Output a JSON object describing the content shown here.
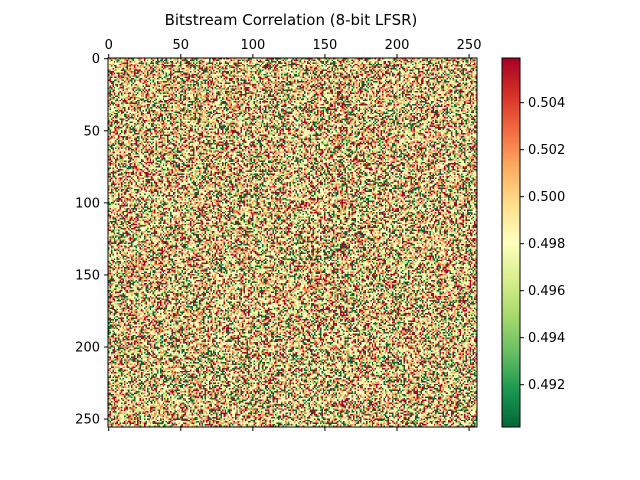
{
  "chart_data": {
    "type": "heatmap",
    "title": "Bitstream Correlation (8-bit LFSR)",
    "rows": 256,
    "cols": 256,
    "x_ticks": [
      0,
      50,
      100,
      150,
      200,
      250
    ],
    "y_ticks": [
      0,
      50,
      100,
      150,
      200,
      250
    ],
    "x_tick_position": "top",
    "y_axis_direction": "down",
    "colormap": "RdYlGn_r",
    "colormap_stops": [
      "#006837",
      "#1a9850",
      "#66bd63",
      "#a6d96a",
      "#d9ef8b",
      "#ffffbf",
      "#fee08b",
      "#fdae61",
      "#f46d43",
      "#d73027",
      "#a50026"
    ],
    "value_range": [
      0.4902,
      0.5059
    ],
    "value_levels": [
      0.4902,
      0.4961,
      0.498,
      0.502,
      0.5059
    ],
    "value_level_weights": [
      0.16,
      0.14,
      0.36,
      0.18,
      0.16
    ],
    "colorbar": {
      "ticks": [
        0.492,
        0.494,
        0.496,
        0.498,
        0.5,
        0.502,
        0.504
      ],
      "tick_labels": [
        "0.492",
        "0.494",
        "0.496",
        "0.498",
        "0.500",
        "0.502",
        "0.504"
      ],
      "position": "right"
    },
    "grid": false
  }
}
